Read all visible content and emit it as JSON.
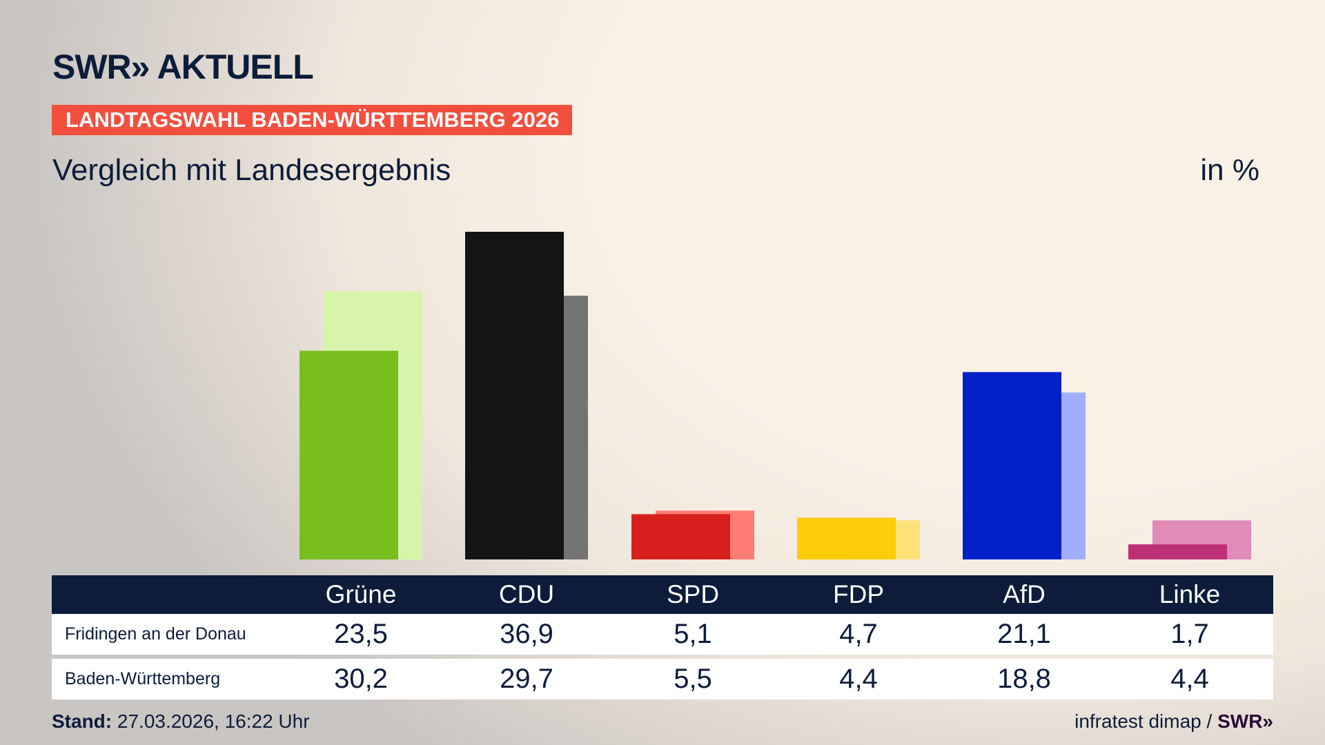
{
  "header": {
    "logo": "SWR» AKTUELL",
    "banner": "LANDTAGSWAHL BADEN-WÜRTTEMBERG 2026",
    "subtitle": "Vergleich mit Landesergebnis",
    "unit": "in %"
  },
  "chart_data": {
    "type": "bar",
    "categories": [
      "Grüne",
      "CDU",
      "SPD",
      "FDP",
      "AfD",
      "Linke"
    ],
    "series": [
      {
        "name": "Fridingen an der Donau",
        "values": [
          23.5,
          36.9,
          5.1,
          4.7,
          21.1,
          1.7
        ],
        "colors": [
          "#78be1e",
          "#141414",
          "#d7201e",
          "#ffcc0a",
          "#0021c8",
          "#be3075"
        ]
      },
      {
        "name": "Baden-Württemberg",
        "values": [
          30.2,
          29.7,
          5.5,
          4.4,
          18.8,
          4.4
        ],
        "colors": [
          "#d6f5aa",
          "#737373",
          "#ff7b73",
          "#ffe27a",
          "#a0aeff",
          "#e08bb8"
        ]
      }
    ],
    "ylim": [
      0,
      36.9
    ],
    "grid": false
  },
  "table": {
    "rows": [
      {
        "label": "Fridingen an der Donau",
        "values": [
          "23,5",
          "36,9",
          "5,1",
          "4,7",
          "21,1",
          "1,7"
        ]
      },
      {
        "label": "Baden-Württemberg",
        "values": [
          "30,2",
          "29,7",
          "5,5",
          "4,4",
          "18,8",
          "4,4"
        ]
      }
    ]
  },
  "footer": {
    "stand_label": "Stand:",
    "stand_value": "27.03.2026, 16:22 Uhr",
    "source": "infratest dimap /",
    "source_logo": "SWR»"
  }
}
